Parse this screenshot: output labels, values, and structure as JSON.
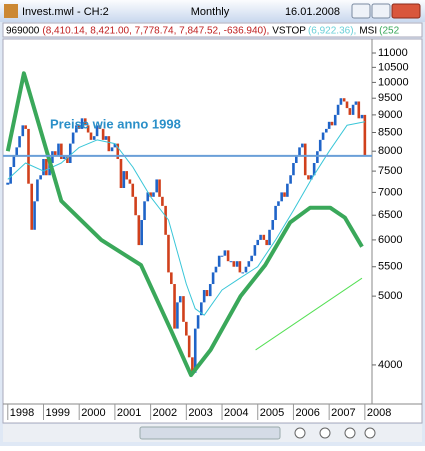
{
  "header": {
    "window_title": "Invest.mwl - CH:2",
    "date": "16.01.2008",
    "symbol": "969000",
    "ohlc": "(8,410.14, 8,421.00, 7,778.74, 7,847.52, -636.940),",
    "vstop_label": "VSTOP",
    "vstop_value": "(6,922.36),",
    "msi_label": "MSI",
    "msi_value": "(252"
  },
  "chart_data": {
    "type": "candlestick",
    "title": "Monthly",
    "annotation": "Preise wie anno 1998",
    "up_color": "#1f64c8",
    "down_color": "#d0401c",
    "log_y": true,
    "ylim": [
      3570,
      11400
    ],
    "yticks": [
      4000,
      5000,
      5500,
      6000,
      6500,
      7000,
      7500,
      8000,
      8500,
      9000,
      9500,
      10000,
      10500,
      11000
    ],
    "xlim": [
      1997.95,
      2008.2
    ],
    "xticks": [
      1998,
      1999,
      2000,
      2001,
      2002,
      2003,
      2004,
      2005,
      2006,
      2007,
      2008
    ],
    "reference_line": 7880,
    "reference_color": "#6a9fd8",
    "x": [
      1998.0,
      1998.08,
      1998.17,
      1998.25,
      1998.33,
      1998.42,
      1998.5,
      1998.58,
      1998.67,
      1998.75,
      1998.83,
      1998.92,
      1999.0,
      1999.08,
      1999.17,
      1999.25,
      1999.33,
      1999.42,
      1999.5,
      1999.58,
      1999.67,
      1999.75,
      1999.83,
      1999.92,
      2000.0,
      2000.08,
      2000.17,
      2000.25,
      2000.33,
      2000.42,
      2000.5,
      2000.58,
      2000.67,
      2000.75,
      2000.83,
      2000.92,
      2001.0,
      2001.08,
      2001.17,
      2001.25,
      2001.33,
      2001.42,
      2001.5,
      2001.58,
      2001.67,
      2001.75,
      2001.83,
      2001.92,
      2002.0,
      2002.08,
      2002.17,
      2002.25,
      2002.33,
      2002.42,
      2002.5,
      2002.58,
      2002.67,
      2002.75,
      2002.83,
      2002.92,
      2003.0,
      2003.08,
      2003.17,
      2003.25,
      2003.33,
      2003.42,
      2003.5,
      2003.58,
      2003.67,
      2003.75,
      2003.83,
      2003.92,
      2004.0,
      2004.08,
      2004.17,
      2004.25,
      2004.33,
      2004.42,
      2004.5,
      2004.58,
      2004.67,
      2004.75,
      2004.83,
      2004.92,
      2005.0,
      2005.08,
      2005.17,
      2005.25,
      2005.33,
      2005.42,
      2005.5,
      2005.58,
      2005.67,
      2005.75,
      2005.83,
      2005.92,
      2006.0,
      2006.08,
      2006.17,
      2006.25,
      2006.33,
      2006.42,
      2006.5,
      2006.58,
      2006.67,
      2006.75,
      2006.83,
      2006.92,
      2007.0,
      2007.08,
      2007.17,
      2007.25,
      2007.33,
      2007.42,
      2007.5,
      2007.58,
      2007.67,
      2007.75,
      2007.83,
      2007.92,
      2008.0
    ],
    "values": [
      7200,
      7600,
      7900,
      8100,
      8400,
      8700,
      8600,
      7200,
      6200,
      6800,
      7300,
      7400,
      7800,
      7400,
      7700,
      8000,
      7900,
      8200,
      7800,
      7900,
      7700,
      8200,
      8500,
      8700,
      8600,
      8900,
      8700,
      8500,
      8300,
      8400,
      8700,
      8600,
      8300,
      8400,
      8000,
      8100,
      8200,
      7800,
      7100,
      7500,
      7300,
      7200,
      6900,
      6500,
      5900,
      6400,
      6800,
      7000,
      6900,
      7000,
      7300,
      6900,
      6700,
      6100,
      5400,
      5200,
      4500,
      4900,
      5000,
      4600,
      4400,
      4100,
      3900,
      4500,
      4700,
      4900,
      5100,
      5000,
      5200,
      5400,
      5500,
      5700,
      5700,
      5800,
      5600,
      5600,
      5500,
      5600,
      5400,
      5400,
      5500,
      5600,
      5700,
      5900,
      6000,
      6100,
      6000,
      5900,
      6200,
      6400,
      6700,
      6800,
      7000,
      6900,
      7200,
      7400,
      7700,
      7900,
      8100,
      8200,
      7400,
      7300,
      7400,
      7700,
      8000,
      8300,
      8500,
      8600,
      8800,
      8700,
      9000,
      9300,
      9500,
      9400,
      9200,
      9000,
      9300,
      9400,
      8900,
      9000,
      7900
    ],
    "series": [
      {
        "color": "#39c6d8",
        "width": 1,
        "x": [
          1998.0,
          1998.5,
          1999.0,
          1999.5,
          2000.0,
          2000.5,
          2001.0,
          2001.5,
          2002.0,
          2002.5,
          2003.0,
          2003.25,
          2003.5,
          2004.0,
          2004.5,
          2005.0,
          2005.5,
          2006.0,
          2006.5,
          2007.0,
          2007.5,
          2008.0
        ],
        "values": [
          7300,
          7700,
          7500,
          7700,
          8100,
          8300,
          8200,
          7600,
          6900,
          6400,
          5200,
          4800,
          4700,
          5100,
          5300,
          5500,
          6000,
          6600,
          7300,
          8000,
          8700,
          8800
        ]
      },
      {
        "color": "#3aa85a",
        "width": 4,
        "x": [
          1998.0,
          1998.45,
          1999.5,
          2000.62,
          2001.73,
          2002.57,
          2003.13,
          2003.68,
          2004.52,
          2005.21,
          2005.91,
          2006.47,
          2007.03,
          2007.44,
          2007.92
        ],
        "values": [
          8000,
          10300,
          6810,
          6000,
          5530,
          4475,
          3870,
          4200,
          5000,
          5530,
          6350,
          6660,
          6660,
          6450,
          5870
        ]
      },
      {
        "color": "#55e055",
        "width": 1,
        "x": [
          2004.94,
          2007.92
        ],
        "values": [
          4200,
          5300
        ]
      }
    ]
  }
}
